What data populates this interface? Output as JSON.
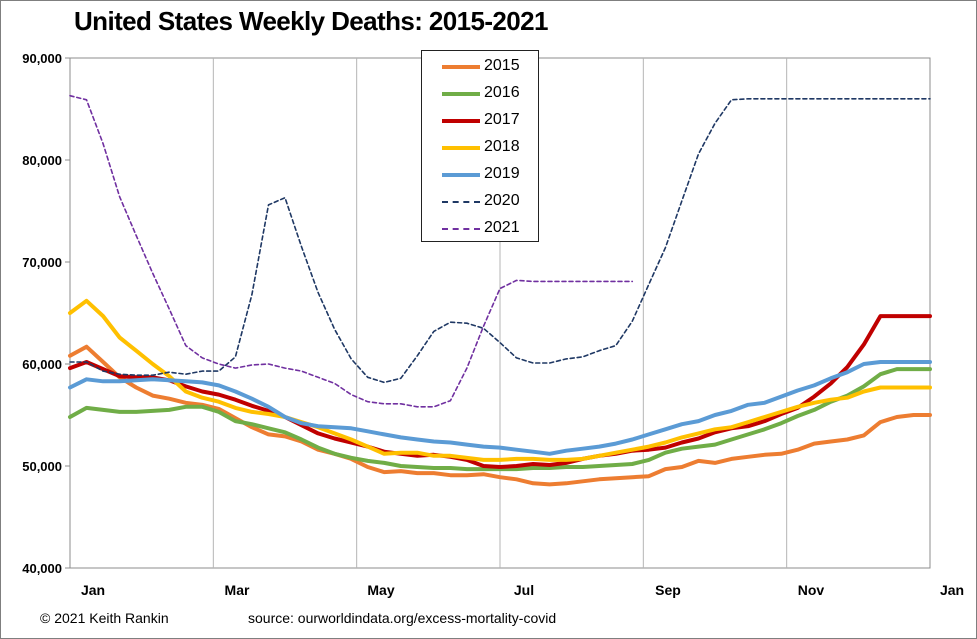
{
  "chart_data": {
    "type": "line",
    "title": "United States Weekly Deaths: 2015-2021",
    "xlabel": "",
    "ylabel": "",
    "x_tick_labels": [
      "Jan",
      "Mar",
      "May",
      "Jul",
      "Sep",
      "Nov",
      "Jan"
    ],
    "y_tick_labels": [
      "40,000",
      "50,000",
      "60,000",
      "70,000",
      "80,000",
      "90,000"
    ],
    "ylim": [
      40000,
      90000
    ],
    "xlim": [
      0,
      52
    ],
    "grid": "vertical",
    "legend_position": "top-center",
    "series": [
      {
        "name": "2015",
        "color": "#ED7D31",
        "style": "solid",
        "x": [
          0,
          1,
          2,
          3,
          4,
          5,
          6,
          7,
          8,
          9,
          10,
          11,
          12,
          13,
          14,
          15,
          16,
          17,
          18,
          19,
          20,
          21,
          22,
          23,
          24,
          25,
          26,
          27,
          28,
          29,
          30,
          31,
          32,
          33,
          34,
          35,
          36,
          37,
          38,
          39,
          40,
          41,
          42,
          43,
          44,
          45,
          46,
          47,
          48,
          49,
          50,
          51,
          52
        ],
        "y": [
          60800,
          61700,
          60200,
          58700,
          57700,
          56900,
          56600,
          56200,
          56000,
          55600,
          54700,
          53800,
          53100,
          52900,
          52400,
          51600,
          51200,
          50700,
          49900,
          49400,
          49500,
          49300,
          49300,
          49100,
          49100,
          49200,
          48900,
          48700,
          48300,
          48200,
          48300,
          48500,
          48700,
          48800,
          48900,
          49000,
          49700,
          49900,
          50500,
          50300,
          50700,
          50900,
          51100,
          51200,
          51600,
          52200,
          52400,
          52600,
          53000,
          54300,
          54800,
          55000,
          55000
        ]
      },
      {
        "name": "2016",
        "color": "#70AD47",
        "style": "solid",
        "x": [
          0,
          1,
          2,
          3,
          4,
          5,
          6,
          7,
          8,
          9,
          10,
          11,
          12,
          13,
          14,
          15,
          16,
          17,
          18,
          19,
          20,
          21,
          22,
          23,
          24,
          25,
          26,
          27,
          28,
          29,
          30,
          31,
          32,
          33,
          34,
          35,
          36,
          37,
          38,
          39,
          40,
          41,
          42,
          43,
          44,
          45,
          46,
          47,
          48,
          49,
          50,
          51,
          52
        ],
        "y": [
          54800,
          55700,
          55500,
          55300,
          55300,
          55400,
          55500,
          55800,
          55800,
          55300,
          54400,
          54100,
          53700,
          53300,
          52600,
          51800,
          51200,
          50800,
          50500,
          50300,
          50000,
          49900,
          49800,
          49800,
          49700,
          49700,
          49700,
          49700,
          49800,
          49800,
          49900,
          49900,
          50000,
          50100,
          50200,
          50600,
          51300,
          51700,
          51900,
          52100,
          52600,
          53100,
          53600,
          54200,
          54900,
          55500,
          56300,
          56900,
          57800,
          59000,
          59500,
          59500,
          59500
        ]
      },
      {
        "name": "2017",
        "color": "#C00000",
        "style": "solid",
        "x": [
          0,
          1,
          2,
          3,
          4,
          5,
          6,
          7,
          8,
          9,
          10,
          11,
          12,
          13,
          14,
          15,
          16,
          17,
          18,
          19,
          20,
          21,
          22,
          23,
          24,
          25,
          26,
          27,
          28,
          29,
          30,
          31,
          32,
          33,
          34,
          35,
          36,
          37,
          38,
          39,
          40,
          41,
          42,
          43,
          44,
          45,
          46,
          47,
          48,
          49,
          50,
          51,
          52
        ],
        "y": [
          59600,
          60200,
          59500,
          58800,
          58700,
          58700,
          58400,
          57800,
          57300,
          57000,
          56500,
          55900,
          55400,
          54800,
          54000,
          53200,
          52700,
          52300,
          51900,
          51400,
          51200,
          51000,
          51100,
          50900,
          50600,
          50000,
          49900,
          50000,
          50200,
          50100,
          50300,
          50700,
          51000,
          51200,
          51500,
          51600,
          51800,
          52300,
          52700,
          53300,
          53700,
          53900,
          54400,
          55100,
          55700,
          56800,
          58100,
          59700,
          61900,
          64700,
          64700,
          64700,
          64700
        ]
      },
      {
        "name": "2018",
        "color": "#FFC000",
        "style": "solid",
        "x": [
          0,
          1,
          2,
          3,
          4,
          5,
          6,
          7,
          8,
          9,
          10,
          11,
          12,
          13,
          14,
          15,
          16,
          17,
          18,
          19,
          20,
          21,
          22,
          23,
          24,
          25,
          26,
          27,
          28,
          29,
          30,
          31,
          32,
          33,
          34,
          35,
          36,
          37,
          38,
          39,
          40,
          41,
          42,
          43,
          44,
          45,
          46,
          47,
          48,
          49,
          50,
          51,
          52
        ],
        "y": [
          65000,
          66200,
          64700,
          62600,
          61300,
          60000,
          58800,
          57300,
          56700,
          56300,
          55700,
          55300,
          55100,
          54800,
          54300,
          53800,
          53200,
          52600,
          51900,
          51200,
          51300,
          51300,
          51000,
          51000,
          50800,
          50600,
          50600,
          50700,
          50700,
          50600,
          50600,
          50700,
          51000,
          51300,
          51600,
          51900,
          52300,
          52800,
          53200,
          53600,
          53800,
          54300,
          54800,
          55300,
          55800,
          56200,
          56500,
          56700,
          57300,
          57700,
          57700,
          57700,
          57700
        ]
      },
      {
        "name": "2019",
        "color": "#5B9BD5",
        "style": "solid",
        "x": [
          0,
          1,
          2,
          3,
          4,
          5,
          6,
          7,
          8,
          9,
          10,
          11,
          12,
          13,
          14,
          15,
          16,
          17,
          18,
          19,
          20,
          21,
          22,
          23,
          24,
          25,
          26,
          27,
          28,
          29,
          30,
          31,
          32,
          33,
          34,
          35,
          36,
          37,
          38,
          39,
          40,
          41,
          42,
          43,
          44,
          45,
          46,
          47,
          48,
          49,
          50,
          51,
          52
        ],
        "y": [
          57700,
          58500,
          58300,
          58300,
          58400,
          58500,
          58400,
          58300,
          58200,
          57900,
          57300,
          56600,
          55800,
          54800,
          54200,
          53900,
          53800,
          53700,
          53400,
          53100,
          52800,
          52600,
          52400,
          52300,
          52100,
          51900,
          51800,
          51600,
          51400,
          51200,
          51500,
          51700,
          51900,
          52200,
          52600,
          53100,
          53600,
          54100,
          54400,
          55000,
          55400,
          56000,
          56200,
          56800,
          57400,
          57900,
          58600,
          59200,
          60000,
          60200,
          60200,
          60200,
          60200
        ]
      },
      {
        "name": "2020",
        "color": "#1F3864",
        "style": "dashed",
        "x": [
          0,
          1,
          2,
          3,
          4,
          5,
          6,
          7,
          8,
          9,
          10,
          11,
          12,
          13,
          14,
          15,
          16,
          17,
          18,
          19,
          20,
          21,
          22,
          23,
          24,
          25,
          26,
          27,
          28,
          29,
          30,
          31,
          32,
          33,
          34,
          35,
          36,
          37,
          38,
          39,
          40,
          41,
          42,
          43,
          44,
          45,
          46,
          47,
          48,
          49,
          50,
          51,
          52
        ],
        "y": [
          60200,
          60200,
          59300,
          59000,
          58900,
          58900,
          59200,
          59000,
          59300,
          59300,
          60700,
          66800,
          75600,
          76300,
          71500,
          67000,
          63400,
          60500,
          58700,
          58200,
          58600,
          60800,
          63200,
          64100,
          64000,
          63500,
          62100,
          60600,
          60100,
          60100,
          60500,
          60700,
          61300,
          61800,
          64200,
          67800,
          71400,
          76000,
          80600,
          83600,
          85900,
          86000,
          86000,
          86000,
          86000,
          86000,
          86000,
          86000,
          86000,
          86000,
          86000,
          86000,
          86000
        ]
      },
      {
        "name": "2021",
        "color": "#7030A0",
        "style": "dashed",
        "x": [
          0,
          1,
          2,
          3,
          4,
          5,
          6,
          7,
          8,
          9,
          10,
          11,
          12,
          13,
          14,
          15,
          16,
          17,
          18,
          19,
          20,
          21,
          22,
          23,
          24,
          25,
          26,
          27,
          28,
          29,
          30,
          31,
          32,
          33,
          34
        ],
        "y": [
          86300,
          85900,
          81600,
          76400,
          72600,
          68900,
          65400,
          61800,
          60600,
          60000,
          59600,
          59900,
          60000,
          59600,
          59300,
          58700,
          58100,
          57000,
          56300,
          56100,
          56100,
          55800,
          55800,
          56400,
          59600,
          63700,
          67400,
          68200,
          68100,
          68100,
          68100,
          68100,
          68100,
          68100,
          68100
        ]
      }
    ]
  },
  "footer": {
    "credit": "© 2021 Keith Rankin",
    "source": "source:  ourworldindata.org/excess-mortality-covid"
  }
}
